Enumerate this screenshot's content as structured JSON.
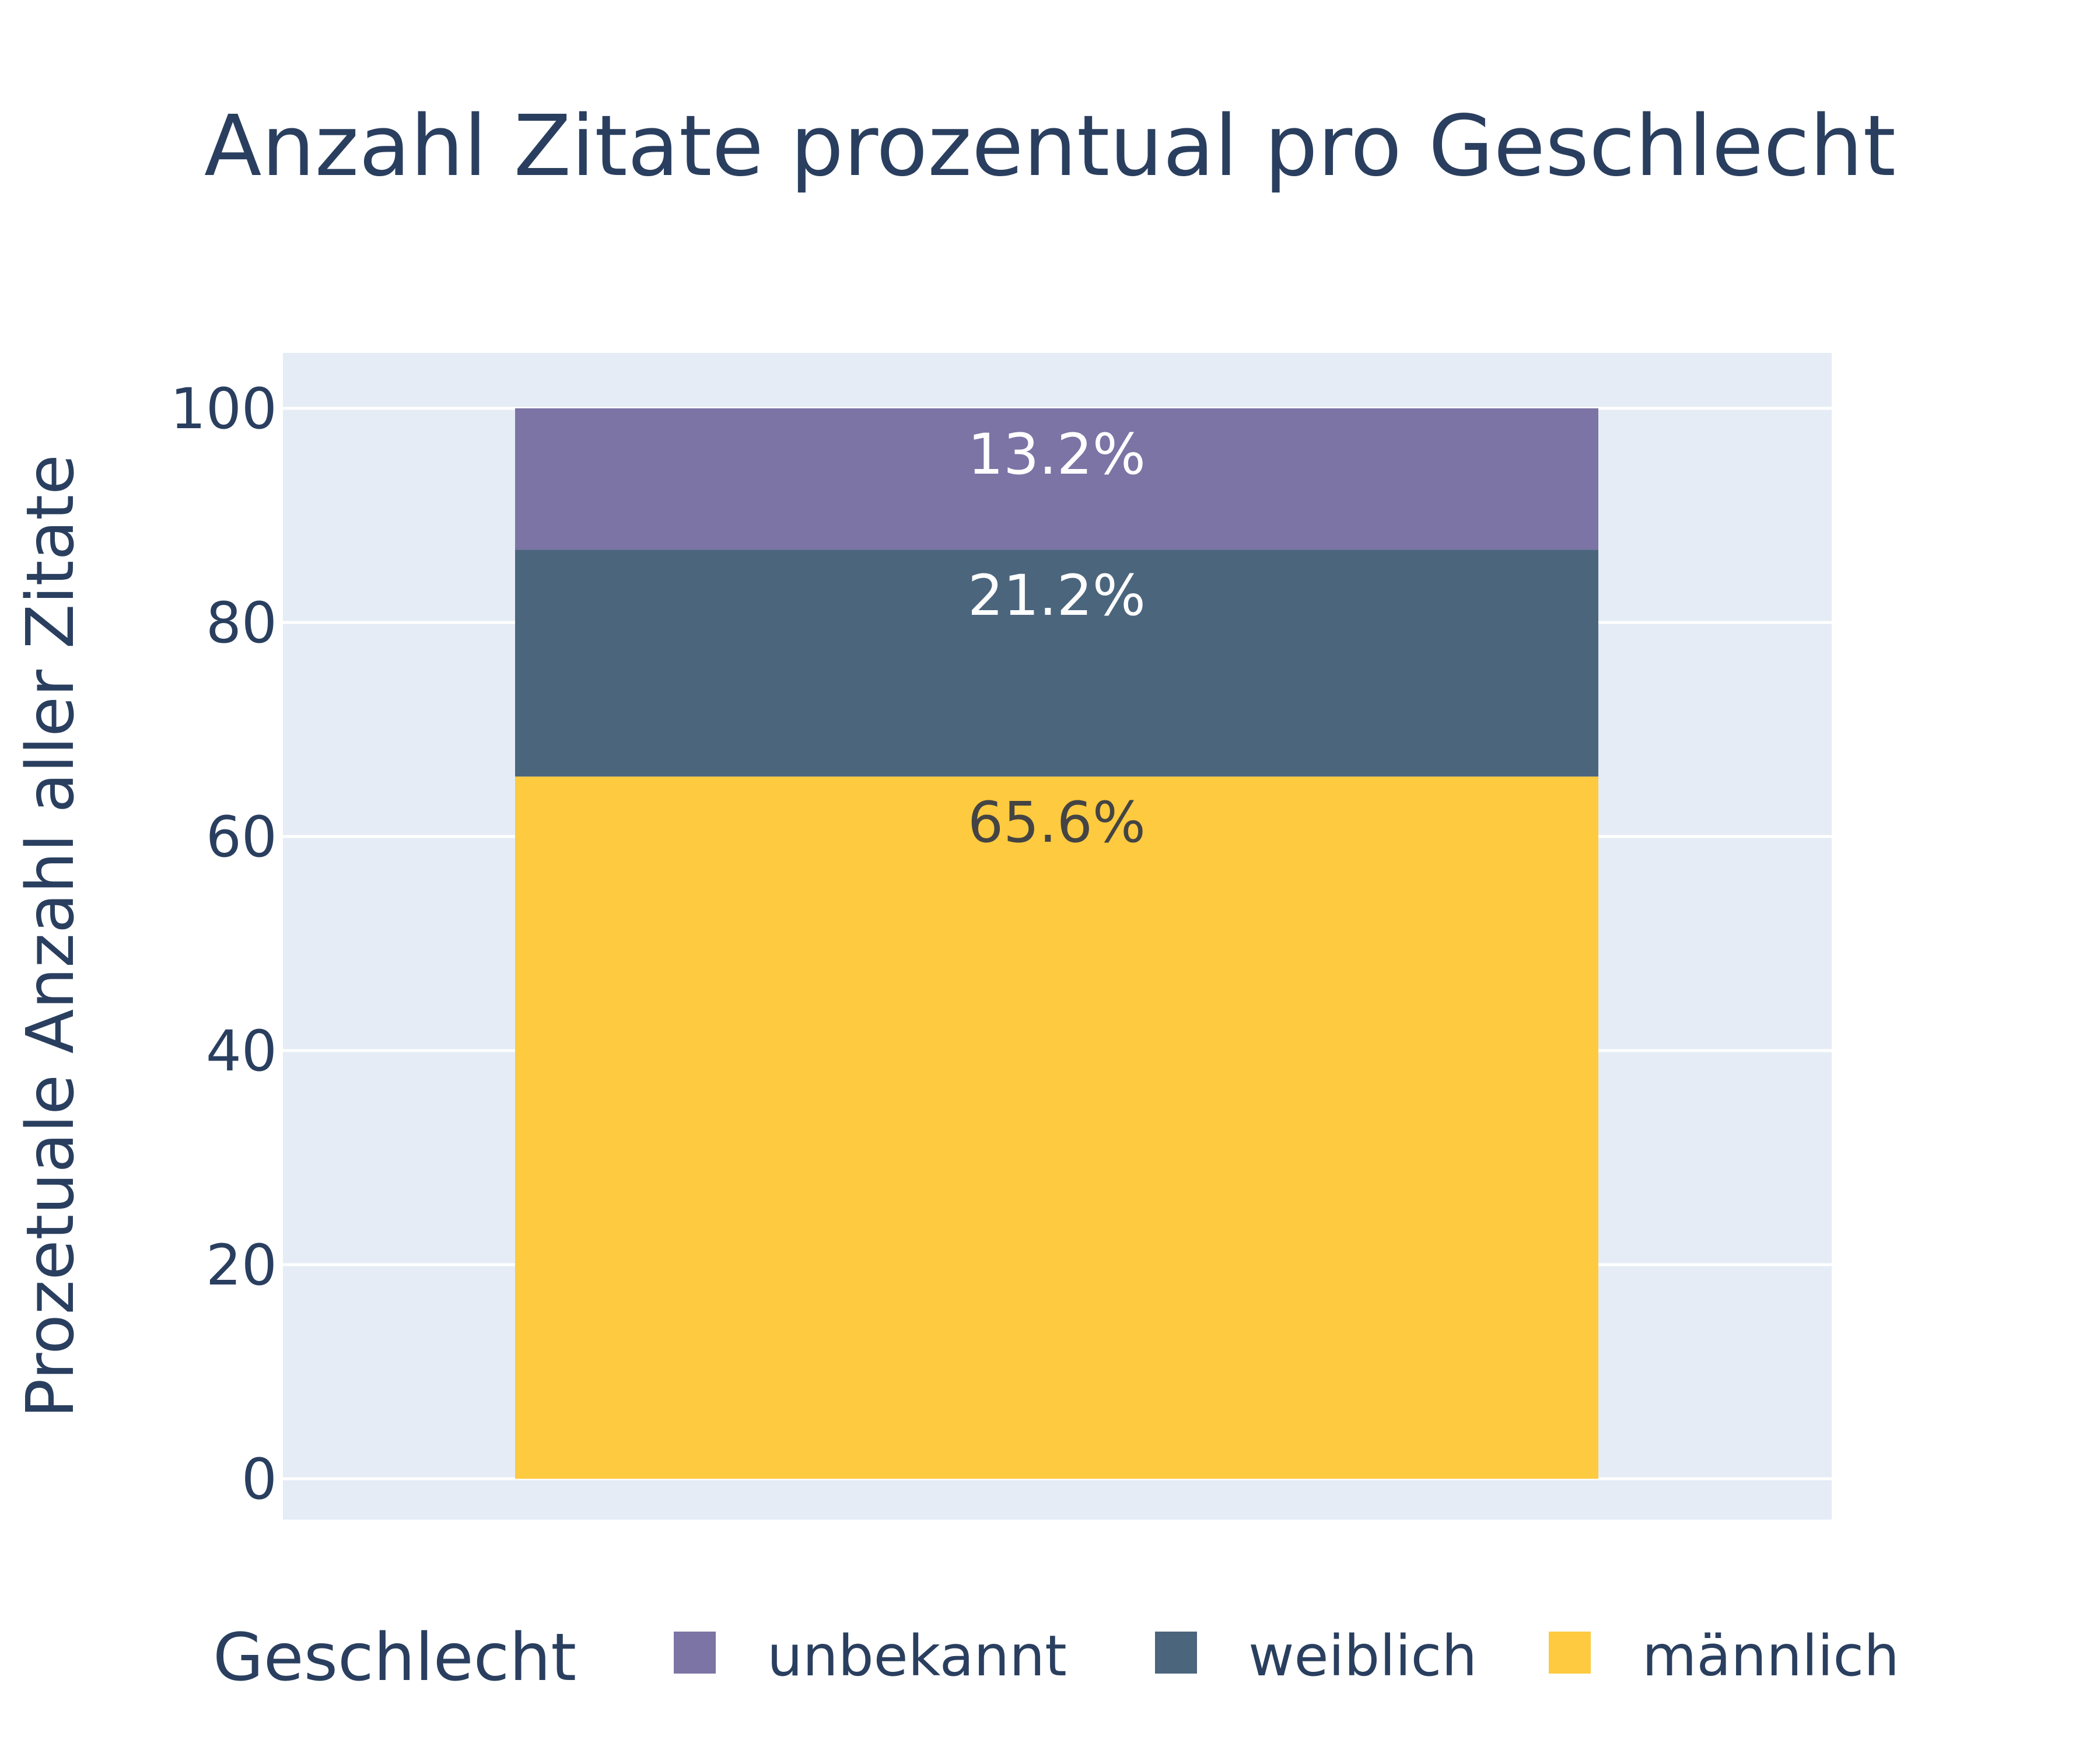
{
  "chart_data": {
    "type": "bar",
    "stacked": true,
    "title": "Anzahl Zitate prozentual pro Geschlecht",
    "ylabel": "Prozetuale Anzahl aller Zitate",
    "ylim": [
      0,
      105
    ],
    "yticks": [
      0,
      20,
      40,
      60,
      80,
      100
    ],
    "grid": true,
    "legend": {
      "title": "Geschlecht",
      "position": "bottom"
    },
    "series": [
      {
        "name": "männlich",
        "values": [
          65.6
        ],
        "label": "65.6%",
        "color": "#fdca40",
        "label_color": "#444444"
      },
      {
        "name": "weiblich",
        "values": [
          21.2
        ],
        "label": "21.2%",
        "color": "#4b657d",
        "label_color": "#ffffff"
      },
      {
        "name": "unbekannt",
        "values": [
          13.2
        ],
        "label": "13.2%",
        "color": "#7b74a5",
        "label_color": "#ffffff"
      }
    ],
    "legend_order": [
      "unbekannt",
      "weiblich",
      "männlich"
    ],
    "colors": {
      "plot_bg": "#e5ecf6",
      "grid": "#ffffff",
      "text": "#2a3f5f"
    }
  }
}
